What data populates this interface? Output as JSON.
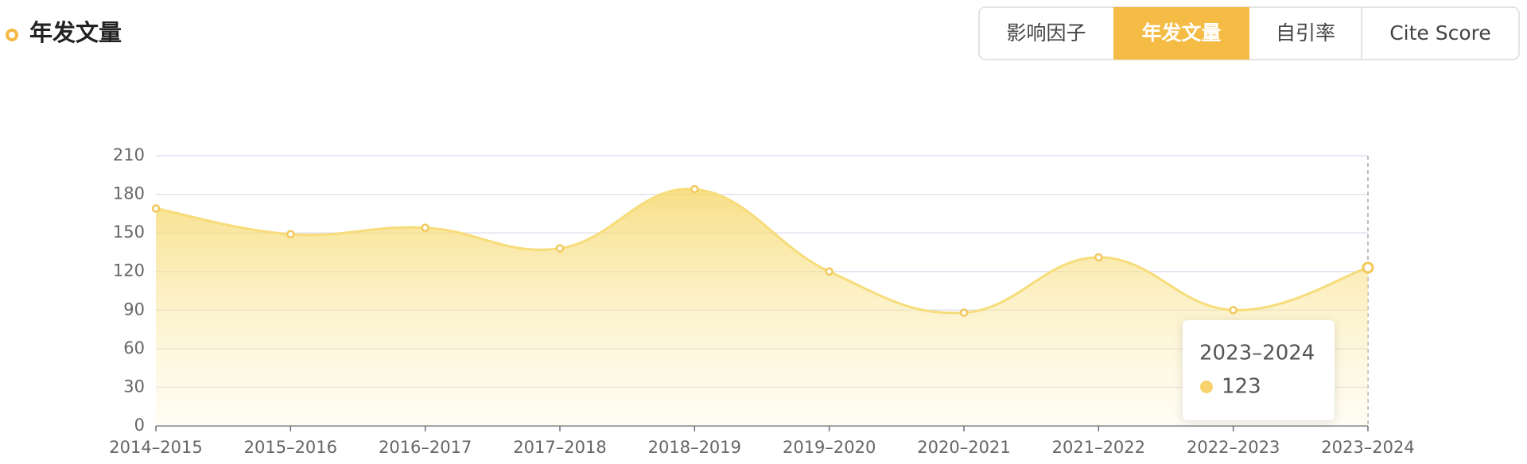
{
  "chart_data": {
    "type": "line",
    "title": "年发文量",
    "tabs": [
      "影响因子",
      "年发文量",
      "自引率",
      "Cite Score"
    ],
    "categories": [
      "2014–2015",
      "2015–2016",
      "2016–2017",
      "2017–2018",
      "2018–2019",
      "2019–2020",
      "2020–2021",
      "2021–2022",
      "2022–2023",
      "2023–2024"
    ],
    "values": [
      169,
      149,
      154,
      138,
      184,
      120,
      88,
      131,
      90,
      123
    ],
    "color": "#f7dc7a",
    "ylim": [
      0,
      210
    ],
    "yticks": [
      0,
      30,
      60,
      90,
      120,
      150,
      180,
      210
    ],
    "grid": true
  }
}
